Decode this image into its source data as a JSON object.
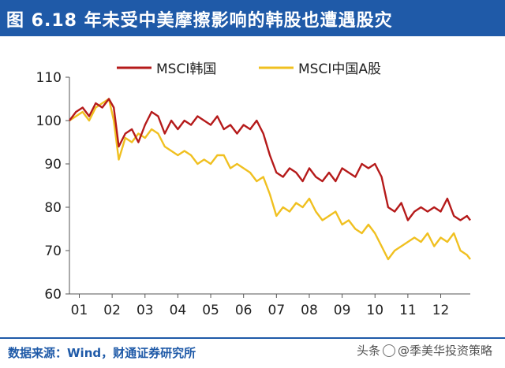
{
  "header": {
    "title": "图 6.18 年未受中美摩擦影响的韩股也遭遇股灾"
  },
  "footer": {
    "source": "数据来源：Wind，财通证券研究所"
  },
  "watermark": {
    "prefix": "头条",
    "account": "@季美华投资策略"
  },
  "colors": {
    "title_bg": "#1f5aa8",
    "korea": "#b51a1a",
    "china": "#f0c020"
  },
  "chart_data": {
    "type": "line",
    "title": "",
    "xlabel": "",
    "ylabel": "",
    "ylim": [
      60,
      110
    ],
    "yticks": [
      60,
      70,
      80,
      90,
      100,
      110
    ],
    "xlim": [
      0.7,
      12.9
    ],
    "xticks": [
      1,
      2,
      3,
      4,
      5,
      6,
      7,
      8,
      9,
      10,
      11,
      12
    ],
    "xtick_labels": [
      "01",
      "02",
      "03",
      "04",
      "05",
      "06",
      "07",
      "08",
      "09",
      "10",
      "11",
      "12"
    ],
    "grid": false,
    "legend_position": "top",
    "series": [
      {
        "name": "MSCI韩国",
        "color": "#b51a1a",
        "x": [
          0.7,
          0.9,
          1.1,
          1.3,
          1.5,
          1.7,
          1.9,
          2.05,
          2.2,
          2.4,
          2.6,
          2.8,
          3.0,
          3.2,
          3.4,
          3.6,
          3.8,
          4.0,
          4.2,
          4.4,
          4.6,
          4.8,
          5.0,
          5.2,
          5.4,
          5.6,
          5.8,
          6.0,
          6.2,
          6.4,
          6.6,
          6.8,
          7.0,
          7.2,
          7.4,
          7.6,
          7.8,
          8.0,
          8.2,
          8.4,
          8.6,
          8.8,
          9.0,
          9.2,
          9.4,
          9.6,
          9.8,
          10.0,
          10.2,
          10.4,
          10.6,
          10.8,
          11.0,
          11.2,
          11.4,
          11.6,
          11.8,
          12.0,
          12.2,
          12.4,
          12.6,
          12.8,
          12.9
        ],
        "values": [
          100,
          102,
          103,
          101,
          104,
          103,
          105,
          103,
          94,
          97,
          98,
          95,
          99,
          102,
          101,
          97,
          100,
          98,
          100,
          99,
          101,
          100,
          99,
          101,
          98,
          99,
          97,
          99,
          98,
          100,
          97,
          92,
          88,
          87,
          89,
          88,
          86,
          89,
          87,
          86,
          88,
          86,
          89,
          88,
          87,
          90,
          89,
          90,
          87,
          80,
          79,
          81,
          77,
          79,
          80,
          79,
          80,
          79,
          82,
          78,
          77,
          78,
          77
        ]
      },
      {
        "name": "MSCI中国A股",
        "color": "#f0c020",
        "x": [
          0.7,
          0.9,
          1.1,
          1.3,
          1.5,
          1.7,
          1.9,
          2.05,
          2.2,
          2.4,
          2.6,
          2.8,
          3.0,
          3.2,
          3.4,
          3.6,
          3.8,
          4.0,
          4.2,
          4.4,
          4.6,
          4.8,
          5.0,
          5.2,
          5.4,
          5.6,
          5.8,
          6.0,
          6.2,
          6.4,
          6.6,
          6.8,
          7.0,
          7.2,
          7.4,
          7.6,
          7.8,
          8.0,
          8.2,
          8.4,
          8.6,
          8.8,
          9.0,
          9.2,
          9.4,
          9.6,
          9.8,
          10.0,
          10.2,
          10.4,
          10.6,
          10.8,
          11.0,
          11.2,
          11.4,
          11.6,
          11.8,
          12.0,
          12.2,
          12.4,
          12.6,
          12.8,
          12.9
        ],
        "values": [
          100,
          101,
          102,
          100,
          103,
          104,
          105,
          100,
          91,
          96,
          95,
          97,
          96,
          98,
          97,
          94,
          93,
          92,
          93,
          92,
          90,
          91,
          90,
          92,
          92,
          89,
          90,
          89,
          88,
          86,
          87,
          83,
          78,
          80,
          79,
          81,
          80,
          82,
          79,
          77,
          78,
          79,
          76,
          77,
          75,
          74,
          76,
          74,
          71,
          68,
          70,
          71,
          72,
          73,
          72,
          74,
          71,
          73,
          72,
          74,
          70,
          69,
          68
        ]
      }
    ]
  }
}
